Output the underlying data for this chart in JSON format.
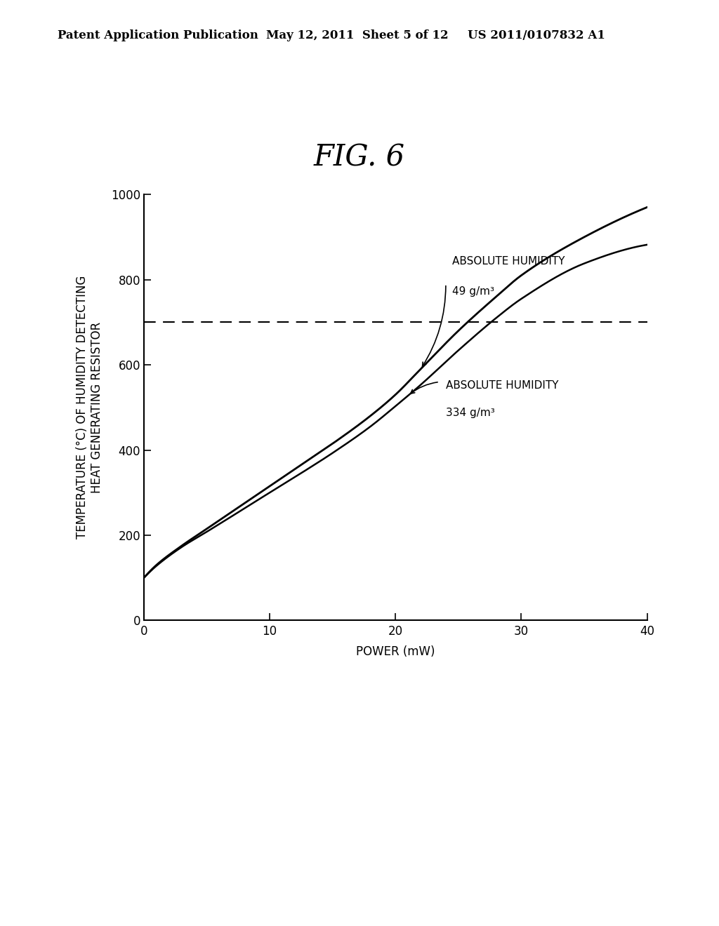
{
  "title": "FIG. 6",
  "xlabel": "POWER (mW)",
  "ylabel": "TEMPERATURE (°C) OF HUMIDITY DETECTING\nHEAT GENERATING RESISTOR",
  "xlim": [
    0,
    40
  ],
  "ylim": [
    0,
    1000
  ],
  "xticks": [
    0,
    10,
    20,
    30,
    40
  ],
  "yticks": [
    0,
    200,
    400,
    600,
    800,
    1000
  ],
  "dashed_line_y": 700,
  "curve1_label_line1": "ABSOLUTE HUMIDITY",
  "curve1_label_line2": "49 g/m³",
  "curve2_label_line1": "ABSOLUTE HUMIDITY",
  "curve2_label_line2": "334 g/m³",
  "header_left": "Patent Application Publication",
  "header_mid": "May 12, 2011  Sheet 5 of 12",
  "header_right": "US 2011/0107832 A1",
  "background_color": "#ffffff",
  "line_color": "#000000",
  "dashed_color": "#000000",
  "title_fontsize": 30,
  "axis_label_fontsize": 12,
  "tick_fontsize": 12,
  "header_fontsize": 12,
  "annotation_fontsize": 11,
  "curve1_pts_x": [
    0,
    1,
    3,
    5,
    8,
    10,
    13,
    15,
    18,
    20,
    22,
    25,
    28,
    30,
    35,
    40
  ],
  "curve1_pts_y": [
    100,
    130,
    175,
    215,
    275,
    315,
    375,
    415,
    480,
    530,
    590,
    680,
    760,
    810,
    900,
    970
  ],
  "curve2_pts_x": [
    0,
    1,
    3,
    5,
    8,
    10,
    13,
    15,
    18,
    20,
    22,
    25,
    28,
    30,
    35,
    40
  ],
  "curve2_pts_y": [
    100,
    128,
    172,
    208,
    263,
    300,
    355,
    393,
    455,
    503,
    553,
    634,
    710,
    755,
    838,
    882
  ]
}
